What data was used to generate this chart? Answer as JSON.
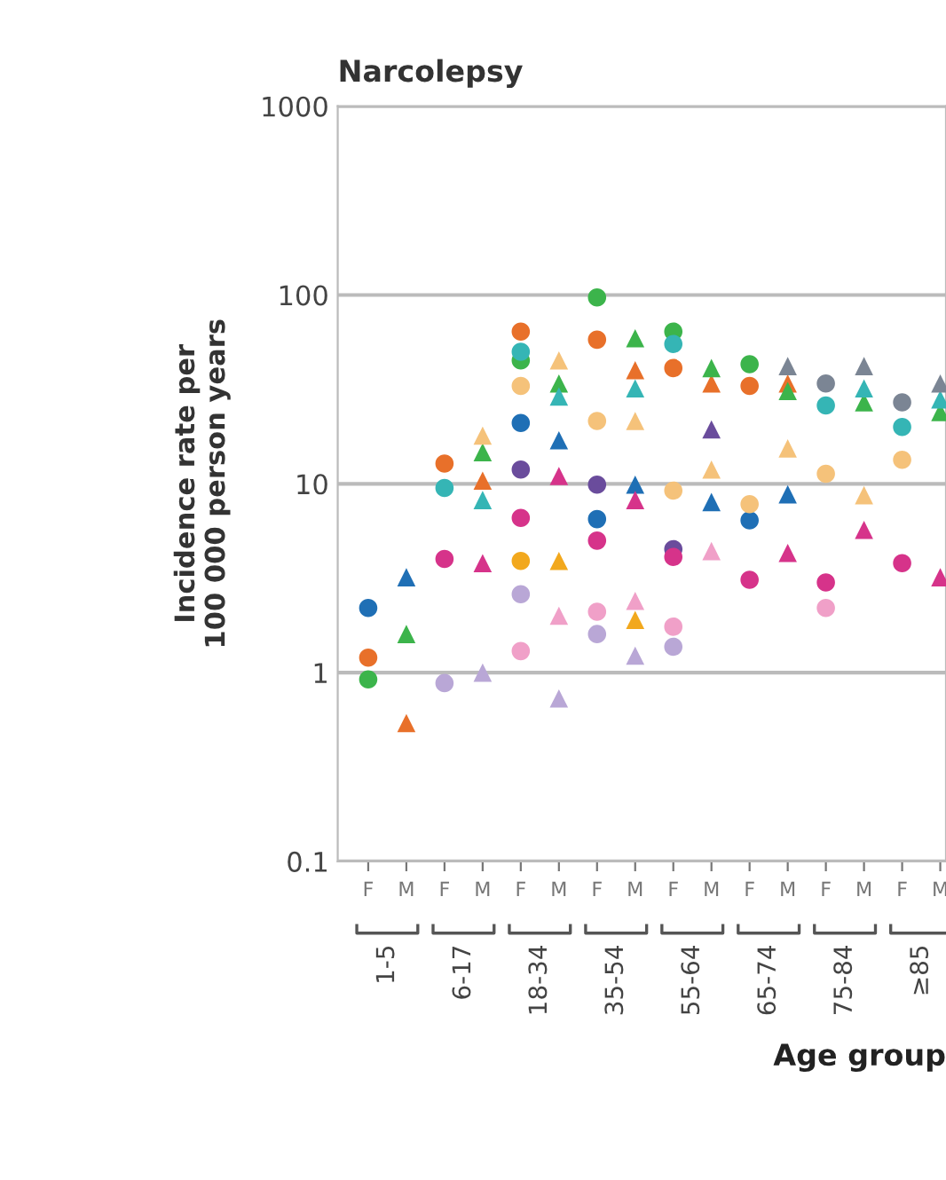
{
  "chart_data": {
    "type": "scatter",
    "title": "Narcolepsy",
    "ylabel": "Incidence rate per\n100 000 person years",
    "xlabel": "Age group",
    "categories": [
      "F",
      "M",
      "F",
      "M",
      "F",
      "M",
      "F",
      "M",
      "F",
      "M",
      "F",
      "M",
      "F",
      "M",
      "F",
      "M"
    ],
    "annotations": [
      "1-5",
      "6-17",
      "18-34",
      "35-54",
      "55-64",
      "65-74",
      "75-84",
      "≥85"
    ],
    "log": "y",
    "ylim": [
      0.1,
      1000
    ],
    "yticks": [
      0.1,
      1,
      10,
      100,
      1000
    ],
    "grid": "y",
    "legend": false,
    "series": [
      {
        "color": "#1f6fb5",
        "marker": "circle",
        "values": [
          2.2,
          null,
          null,
          null,
          21,
          null,
          6.5,
          null,
          null,
          null,
          6.4,
          null,
          null,
          null,
          null,
          null
        ]
      },
      {
        "color": "#1f6fb5",
        "marker": "triangle",
        "values": [
          null,
          3.2,
          null,
          null,
          null,
          17,
          null,
          9.9,
          null,
          8.0,
          null,
          8.8,
          null,
          null,
          null,
          null
        ]
      },
      {
        "color": "#e8702a",
        "marker": "circle",
        "values": [
          1.2,
          null,
          12.8,
          null,
          64,
          null,
          58,
          null,
          41,
          null,
          33,
          null,
          null,
          null,
          null,
          null
        ]
      },
      {
        "color": "#e8702a",
        "marker": "triangle",
        "values": [
          null,
          0.54,
          null,
          10.4,
          null,
          null,
          null,
          40,
          null,
          34,
          null,
          34,
          null,
          null,
          null,
          null
        ]
      },
      {
        "color": "#3cb44b",
        "marker": "circle",
        "values": [
          0.92,
          null,
          null,
          null,
          45,
          null,
          97,
          null,
          64,
          null,
          43,
          null,
          null,
          null,
          null,
          null
        ]
      },
      {
        "color": "#3cb44b",
        "marker": "triangle",
        "values": [
          null,
          1.6,
          null,
          14.7,
          null,
          34,
          null,
          59,
          null,
          41,
          null,
          31,
          null,
          27,
          null,
          24
        ]
      },
      {
        "color": "#35b5b5",
        "marker": "circle",
        "values": [
          null,
          null,
          9.5,
          null,
          50,
          null,
          null,
          null,
          55,
          null,
          null,
          null,
          26,
          null,
          20,
          null
        ]
      },
      {
        "color": "#35b5b5",
        "marker": "triangle",
        "values": [
          null,
          null,
          null,
          8.2,
          null,
          29,
          null,
          32,
          null,
          null,
          null,
          null,
          null,
          32,
          null,
          28
        ]
      },
      {
        "color": "#6a4c9c",
        "marker": "circle",
        "values": [
          null,
          null,
          null,
          null,
          11.9,
          null,
          9.9,
          null,
          4.5,
          null,
          null,
          null,
          null,
          null,
          null,
          null
        ]
      },
      {
        "color": "#6a4c9c",
        "marker": "triangle",
        "values": [
          null,
          null,
          null,
          null,
          null,
          null,
          null,
          null,
          null,
          19.4,
          null,
          null,
          null,
          null,
          null,
          null
        ]
      },
      {
        "color": "#d6338a",
        "marker": "circle",
        "values": [
          null,
          null,
          4.0,
          null,
          6.6,
          null,
          5.0,
          null,
          4.1,
          null,
          3.1,
          null,
          3.0,
          null,
          3.8,
          null
        ]
      },
      {
        "color": "#d6338a",
        "marker": "triangle",
        "values": [
          null,
          null,
          null,
          3.8,
          null,
          11,
          null,
          8.2,
          null,
          null,
          null,
          4.3,
          null,
          5.7,
          null,
          3.2
        ]
      },
      {
        "color": "#f5c27a",
        "marker": "circle",
        "values": [
          null,
          null,
          null,
          null,
          33,
          null,
          21.5,
          null,
          9.2,
          null,
          7.8,
          null,
          11.3,
          null,
          13.4,
          null
        ]
      },
      {
        "color": "#f5c27a",
        "marker": "triangle",
        "values": [
          null,
          null,
          null,
          18,
          null,
          45,
          null,
          21.5,
          null,
          11.9,
          null,
          15.4,
          null,
          8.7,
          null,
          null
        ]
      },
      {
        "color": "#f2a81d",
        "marker": "circle",
        "values": [
          null,
          null,
          null,
          null,
          3.9,
          null,
          null,
          null,
          null,
          null,
          null,
          null,
          null,
          null,
          null,
          null
        ]
      },
      {
        "color": "#f2a81d",
        "marker": "triangle",
        "values": [
          null,
          null,
          null,
          null,
          null,
          3.9,
          null,
          1.9,
          null,
          null,
          null,
          null,
          null,
          null,
          null,
          null
        ]
      },
      {
        "color": "#b9a7d6",
        "marker": "circle",
        "values": [
          null,
          null,
          0.88,
          null,
          2.6,
          null,
          1.6,
          null,
          1.37,
          null,
          null,
          null,
          null,
          null,
          null,
          null
        ]
      },
      {
        "color": "#b9a7d6",
        "marker": "triangle",
        "values": [
          null,
          null,
          null,
          1.0,
          null,
          0.73,
          null,
          1.23,
          null,
          null,
          null,
          null,
          null,
          null,
          null,
          null
        ]
      },
      {
        "color": "#f0a0c8",
        "marker": "circle",
        "values": [
          null,
          null,
          null,
          null,
          1.3,
          null,
          2.1,
          null,
          1.75,
          null,
          null,
          null,
          2.2,
          null,
          null,
          null
        ]
      },
      {
        "color": "#f0a0c8",
        "marker": "triangle",
        "values": [
          null,
          null,
          null,
          null,
          null,
          2.0,
          null,
          2.4,
          null,
          4.4,
          null,
          null,
          null,
          null,
          null,
          null
        ]
      },
      {
        "color": "#7b8594",
        "marker": "circle",
        "values": [
          null,
          null,
          null,
          null,
          null,
          null,
          null,
          null,
          null,
          null,
          null,
          null,
          34,
          null,
          27,
          null
        ]
      },
      {
        "color": "#7b8594",
        "marker": "triangle",
        "values": [
          null,
          null,
          null,
          null,
          null,
          null,
          null,
          null,
          null,
          null,
          null,
          42,
          null,
          42,
          null,
          34
        ]
      }
    ]
  }
}
